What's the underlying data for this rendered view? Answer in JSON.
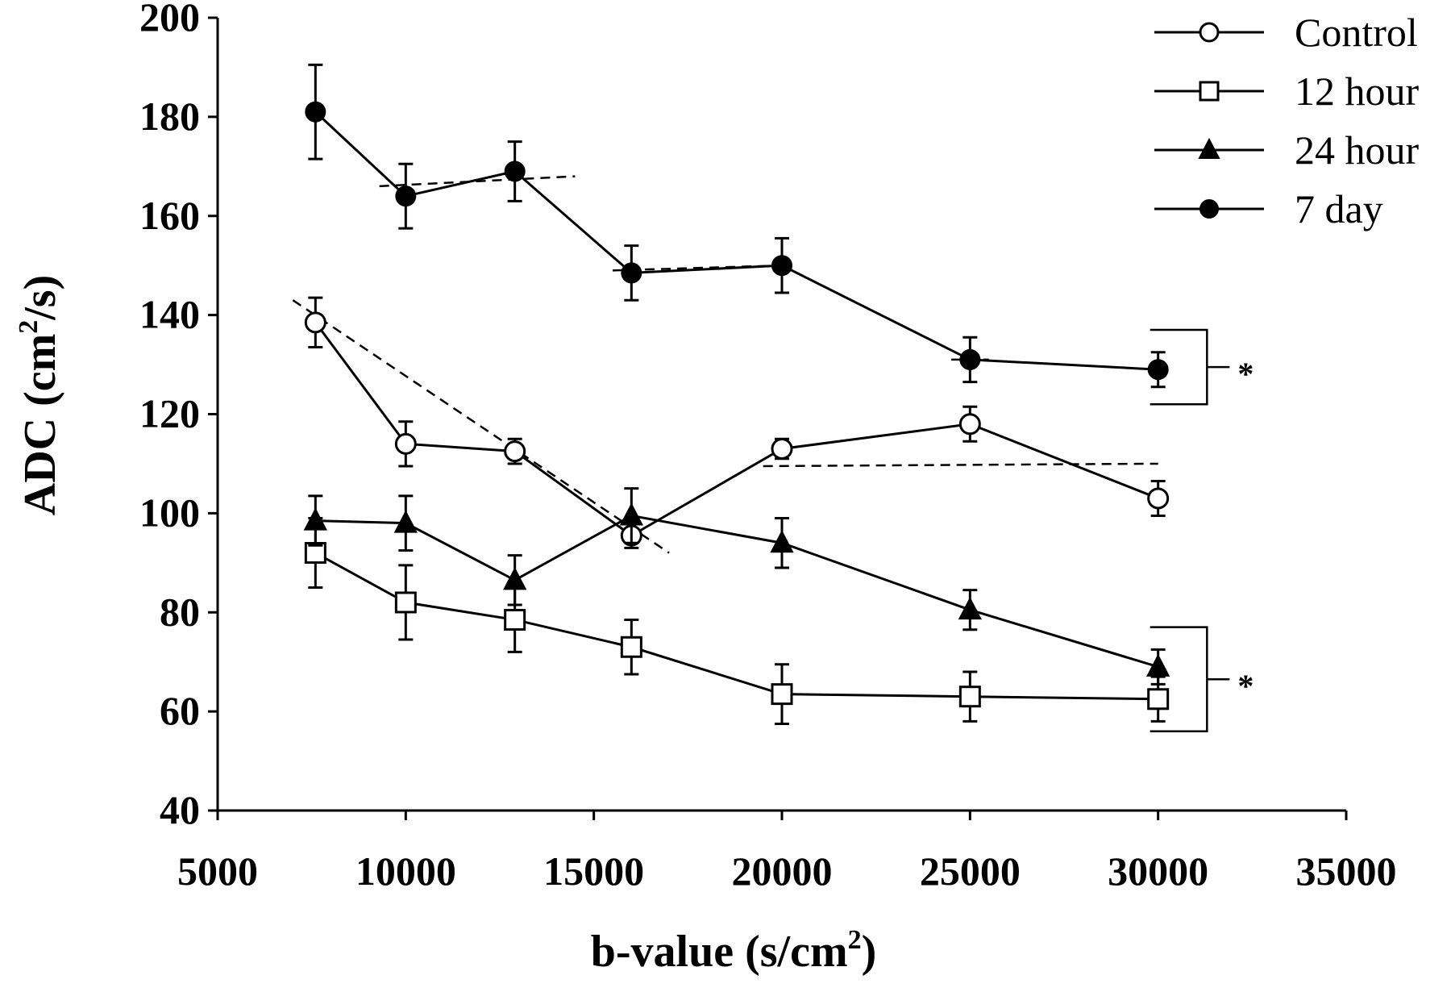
{
  "chart_data": {
    "type": "line",
    "xlabel": "b-value (s/cm",
    "xlabel_sup": "2",
    "xlabel_end": ")",
    "ylabel": "ADC (cm",
    "ylabel_sup": "2",
    "ylabel_end": "/s)",
    "xlim": [
      5000,
      35000
    ],
    "ylim": [
      40,
      200
    ],
    "x_ticks": [
      5000,
      10000,
      15000,
      20000,
      25000,
      30000,
      35000
    ],
    "y_ticks": [
      40,
      60,
      80,
      100,
      120,
      140,
      160,
      180,
      200
    ],
    "grid": false,
    "legend_position": "top-right",
    "x": [
      7600,
      10000,
      12900,
      16000,
      20000,
      25000,
      30000
    ],
    "series": [
      {
        "name": "Control",
        "marker": "open-circle",
        "values": [
          138.5,
          114,
          112.5,
          95.5,
          113,
          118,
          103
        ],
        "errors": [
          5,
          4.5,
          2.5,
          2.5,
          2,
          3.5,
          3.5
        ]
      },
      {
        "name": "12 hour",
        "marker": "open-square",
        "values": [
          92,
          82,
          78.5,
          73,
          63.5,
          63,
          62.5
        ],
        "errors": [
          7,
          7.5,
          6.5,
          5.5,
          6,
          5,
          4.5
        ]
      },
      {
        "name": "24 hour",
        "marker": "filled-triangle",
        "values": [
          98.5,
          98,
          86.5,
          99.5,
          94,
          80.5,
          69
        ],
        "errors": [
          5,
          5.5,
          5,
          5.5,
          5,
          4,
          3.5
        ]
      },
      {
        "name": "7 day",
        "marker": "filled-circle",
        "values": [
          181,
          164,
          169,
          148.5,
          150,
          131,
          129
        ],
        "errors": [
          9.5,
          6.5,
          6,
          5.5,
          5.5,
          4.5,
          3.5
        ]
      }
    ],
    "trend_lines": [
      {
        "style": "dashed",
        "from": [
          7000,
          143
        ],
        "to": [
          17000,
          92
        ]
      },
      {
        "style": "dashed",
        "from": [
          19500,
          109.5
        ],
        "to": [
          30000,
          110
        ]
      },
      {
        "style": "dashed",
        "from": [
          9300,
          166
        ],
        "to": [
          14500,
          168
        ]
      },
      {
        "style": "dashed",
        "from": [
          15500,
          149
        ],
        "to": [
          20000,
          150
        ]
      },
      {
        "style": "dashed",
        "from": [
          24500,
          131
        ],
        "to": [
          25500,
          131
        ]
      }
    ],
    "significance_brackets": [
      {
        "label": "*",
        "y_range": [
          122,
          137
        ]
      },
      {
        "label": "*",
        "y_range": [
          56,
          77
        ]
      }
    ]
  }
}
